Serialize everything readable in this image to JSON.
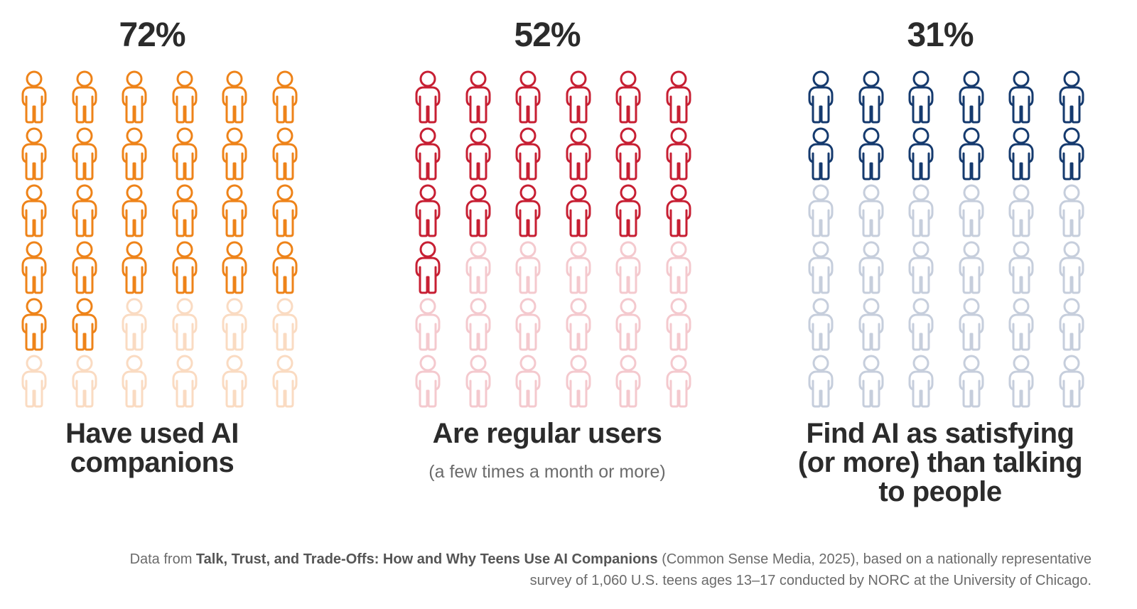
{
  "chart_data": {
    "type": "pictograph",
    "icon": "person-icon",
    "icons_per_panel": 36,
    "grid": {
      "columns": 6,
      "rows": 6
    },
    "panels": [
      {
        "value": "72%",
        "filled_icons": 26,
        "percent": 72,
        "label": "Have used AI\ncompanions",
        "sublabel": "",
        "active_color": "#EE8319",
        "inactive_color": "#FADBC2"
      },
      {
        "value": "52%",
        "filled_icons": 19,
        "percent": 52,
        "label": "Are regular users",
        "sublabel": "(a few times a month or more)",
        "active_color": "#C71F33",
        "inactive_color": "#F4C9CE"
      },
      {
        "value": "31%",
        "filled_icons": 12,
        "percent": 31,
        "label": "Find AI as satisfying\n(or more) than talking\nto people",
        "sublabel": "",
        "active_color": "#153A6E",
        "inactive_color": "#C6CEDC"
      }
    ]
  },
  "footer": {
    "prefix": "Data from ",
    "report_title": "Talk, Trust, and Trade-Offs: How and Why Teens Use AI Companions",
    "suffix_line1": " (Common Sense Media, 2025), based on a nationally representative",
    "line2": "survey of 1,060 U.S. teens ages 13–17 conducted by NORC at the University of Chicago."
  }
}
